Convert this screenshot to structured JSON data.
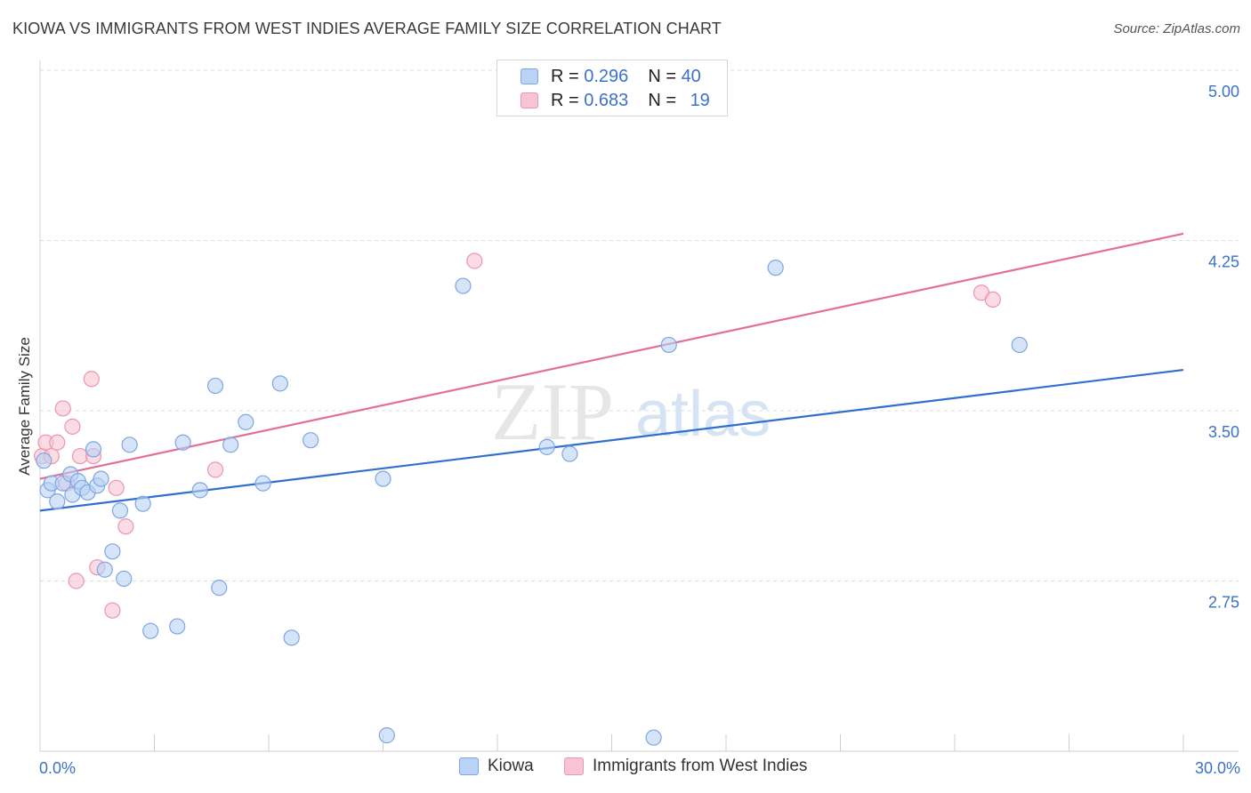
{
  "header": {
    "title": "KIOWA VS IMMIGRANTS FROM WEST INDIES AVERAGE FAMILY SIZE CORRELATION CHART",
    "source": "Source: ZipAtlas.com"
  },
  "legend": {
    "items": [
      {
        "r_label": "R =",
        "r_value": "0.296",
        "n_label": "N =",
        "n_value": "40"
      },
      {
        "r_label": "R =",
        "r_value": "0.683",
        "n_label": "N =",
        "n_value": "19"
      }
    ]
  },
  "watermark": {
    "zip": "ZIP",
    "atlas": "atlas"
  },
  "colors": {
    "kiowa_fill": "#b9d2f5",
    "kiowa_stroke": "#7ea6e0",
    "kiowa_line": "#2f6fcf",
    "wi_fill": "#f8c3d2",
    "wi_stroke": "#ec95b0",
    "wi_line": "#e07099",
    "axis_text": "#3b72c7",
    "grid": "#dcdcdc"
  },
  "chart_data": {
    "type": "scatter",
    "title": "KIOWA VS IMMIGRANTS FROM WEST INDIES AVERAGE FAMILY SIZE CORRELATION CHART",
    "xlabel": "",
    "ylabel": "Average Family Size",
    "xlim": [
      0,
      30
    ],
    "ylim": [
      2.0,
      5.0
    ],
    "x_tick_labels": [
      "0.0%",
      "30.0%"
    ],
    "y_ticks": [
      2.75,
      3.5,
      4.25,
      5.0
    ],
    "y_tick_labels": [
      "2.75",
      "3.50",
      "4.25",
      "5.00"
    ],
    "grid": true,
    "legend_position": "top-center",
    "series": [
      {
        "name": "Kiowa",
        "r": 0.296,
        "n": 40,
        "trend": {
          "x0": 0,
          "y0": 3.06,
          "x1": 30,
          "y1": 3.68
        },
        "points": [
          {
            "x": 0.1,
            "y": 3.28
          },
          {
            "x": 0.2,
            "y": 3.15
          },
          {
            "x": 0.3,
            "y": 3.18
          },
          {
            "x": 0.45,
            "y": 3.1
          },
          {
            "x": 0.6,
            "y": 3.18
          },
          {
            "x": 0.8,
            "y": 3.22
          },
          {
            "x": 0.85,
            "y": 3.13
          },
          {
            "x": 1.0,
            "y": 3.19
          },
          {
            "x": 1.1,
            "y": 3.16
          },
          {
            "x": 1.25,
            "y": 3.14
          },
          {
            "x": 1.4,
            "y": 3.33
          },
          {
            "x": 1.5,
            "y": 3.17
          },
          {
            "x": 1.6,
            "y": 3.2
          },
          {
            "x": 1.7,
            "y": 2.8
          },
          {
            "x": 1.9,
            "y": 2.88
          },
          {
            "x": 2.1,
            "y": 3.06
          },
          {
            "x": 2.2,
            "y": 2.76
          },
          {
            "x": 2.35,
            "y": 3.35
          },
          {
            "x": 2.7,
            "y": 3.09
          },
          {
            "x": 2.9,
            "y": 2.53
          },
          {
            "x": 3.6,
            "y": 2.55
          },
          {
            "x": 3.75,
            "y": 3.36
          },
          {
            "x": 4.2,
            "y": 3.15
          },
          {
            "x": 4.6,
            "y": 3.61
          },
          {
            "x": 4.7,
            "y": 2.72
          },
          {
            "x": 5.0,
            "y": 3.35
          },
          {
            "x": 5.4,
            "y": 3.45
          },
          {
            "x": 5.85,
            "y": 3.18
          },
          {
            "x": 6.3,
            "y": 3.62
          },
          {
            "x": 6.6,
            "y": 2.5
          },
          {
            "x": 7.1,
            "y": 3.37
          },
          {
            "x": 9.0,
            "y": 3.2
          },
          {
            "x": 9.1,
            "y": 2.07
          },
          {
            "x": 11.1,
            "y": 4.05
          },
          {
            "x": 13.3,
            "y": 3.34
          },
          {
            "x": 13.9,
            "y": 3.31
          },
          {
            "x": 16.1,
            "y": 2.06
          },
          {
            "x": 16.5,
            "y": 3.79
          },
          {
            "x": 19.3,
            "y": 4.13
          },
          {
            "x": 25.7,
            "y": 3.79
          }
        ]
      },
      {
        "name": "Immigrants from West Indies",
        "r": 0.683,
        "n": 19,
        "trend": {
          "x0": 0,
          "y0": 3.2,
          "x1": 30,
          "y1": 4.28
        },
        "points": [
          {
            "x": 0.05,
            "y": 3.3
          },
          {
            "x": 0.15,
            "y": 3.36
          },
          {
            "x": 0.3,
            "y": 3.3
          },
          {
            "x": 0.45,
            "y": 3.36
          },
          {
            "x": 0.6,
            "y": 3.51
          },
          {
            "x": 0.7,
            "y": 3.18
          },
          {
            "x": 0.85,
            "y": 3.43
          },
          {
            "x": 0.95,
            "y": 2.75
          },
          {
            "x": 1.05,
            "y": 3.3
          },
          {
            "x": 1.35,
            "y": 3.64
          },
          {
            "x": 1.4,
            "y": 3.3
          },
          {
            "x": 1.5,
            "y": 2.81
          },
          {
            "x": 1.9,
            "y": 2.62
          },
          {
            "x": 2.0,
            "y": 3.16
          },
          {
            "x": 2.25,
            "y": 2.99
          },
          {
            "x": 4.6,
            "y": 3.24
          },
          {
            "x": 11.4,
            "y": 4.16
          },
          {
            "x": 24.7,
            "y": 4.02
          },
          {
            "x": 25.0,
            "y": 3.99
          }
        ]
      }
    ]
  }
}
